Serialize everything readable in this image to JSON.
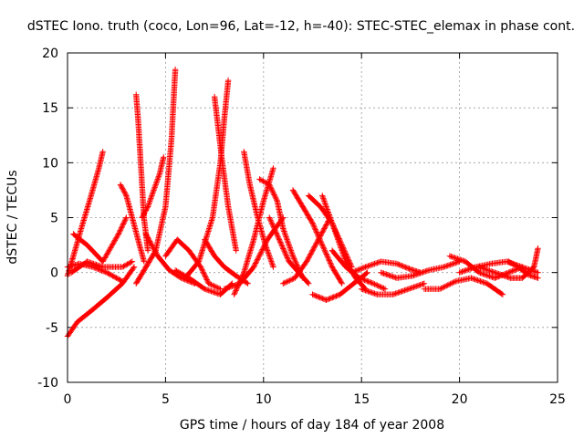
{
  "chart_data": {
    "type": "scatter",
    "title": "dSTEC Iono. truth (coco, Lon=96, Lat=-12, h=-40): STEC-STEC_elemax in phase cont.",
    "xlabel": "GPS time / hours of day 184 of year 2008",
    "ylabel": "dSTEC  / TECUs",
    "xlim": [
      0,
      25
    ],
    "ylim": [
      -10,
      20
    ],
    "xticks": [
      0,
      5,
      10,
      15,
      20,
      25
    ],
    "yticks": [
      -10,
      -5,
      0,
      5,
      10,
      15,
      20
    ],
    "grid": true,
    "marker": "plus",
    "series_color": "#ff0000",
    "series": [
      {
        "x": [
          0.0,
          0.3,
          0.7,
          1.2,
          1.6,
          1.8
        ],
        "y": [
          -0.3,
          1.5,
          4.0,
          7.0,
          9.5,
          11.0
        ]
      },
      {
        "x": [
          0.0,
          0.5,
          1.2,
          2.0,
          2.8,
          3.4
        ],
        "y": [
          -5.8,
          -4.5,
          -3.5,
          -2.3,
          -1.0,
          0.5
        ]
      },
      {
        "x": [
          0.3,
          1.0,
          1.8,
          2.6,
          3.0
        ],
        "y": [
          3.5,
          2.5,
          1.0,
          3.5,
          5.0
        ]
      },
      {
        "x": [
          0.2,
          1.0,
          1.8,
          2.8,
          3.3
        ],
        "y": [
          0.0,
          1.0,
          0.5,
          0.5,
          1.0
        ]
      },
      {
        "x": [
          0.0,
          0.6,
          1.3,
          2.0,
          2.8
        ],
        "y": [
          0.5,
          0.8,
          0.5,
          0.0,
          -0.8
        ]
      },
      {
        "x": [
          2.7,
          3.0,
          3.3,
          3.6,
          3.9
        ],
        "y": [
          8.0,
          7.0,
          5.0,
          3.0,
          1.0
        ]
      },
      {
        "x": [
          3.5,
          3.6,
          3.7,
          3.8,
          3.9,
          4.1
        ],
        "y": [
          16.2,
          14.0,
          11.0,
          8.0,
          5.0,
          2.0
        ]
      },
      {
        "x": [
          3.8,
          4.1,
          4.4,
          4.7,
          4.9
        ],
        "y": [
          5.0,
          6.0,
          7.5,
          9.0,
          10.5
        ]
      },
      {
        "x": [
          3.5,
          4.0,
          4.5,
          5.0,
          5.3,
          5.5
        ],
        "y": [
          -1.0,
          0.5,
          2.0,
          6.0,
          12.0,
          18.5
        ]
      },
      {
        "x": [
          4.0,
          4.6,
          5.2,
          5.8,
          6.5
        ],
        "y": [
          3.5,
          1.5,
          0.2,
          -0.5,
          -1.0
        ]
      },
      {
        "x": [
          5.0,
          5.6,
          6.2,
          6.8,
          7.2,
          7.8
        ],
        "y": [
          1.5,
          3.0,
          2.0,
          0.5,
          -1.0,
          -1.5
        ]
      },
      {
        "x": [
          5.5,
          6.2,
          7.0,
          7.8,
          8.4
        ],
        "y": [
          0.2,
          -0.5,
          -1.5,
          -2.0,
          -1.0
        ]
      },
      {
        "x": [
          6.0,
          6.7,
          7.4,
          7.8,
          8.0,
          8.2
        ],
        "y": [
          -0.5,
          1.0,
          5.0,
          10.0,
          14.0,
          17.5
        ]
      },
      {
        "x": [
          7.5,
          7.7,
          7.9,
          8.2,
          8.6
        ],
        "y": [
          16.0,
          13.0,
          10.0,
          6.0,
          2.0
        ]
      },
      {
        "x": [
          7.0,
          7.5,
          8.0,
          8.6,
          9.2
        ],
        "y": [
          3.0,
          1.5,
          0.5,
          -0.3,
          -1.0
        ]
      },
      {
        "x": [
          8.5,
          9.0,
          9.5,
          10.0,
          10.5
        ],
        "y": [
          -2.0,
          0.0,
          3.0,
          6.5,
          9.5
        ]
      },
      {
        "x": [
          9.0,
          9.3,
          9.7,
          10.1,
          10.5
        ],
        "y": [
          11.0,
          8.0,
          5.0,
          2.5,
          0.5
        ]
      },
      {
        "x": [
          8.0,
          8.8,
          9.5,
          10.2,
          11.0
        ],
        "y": [
          -1.5,
          -1.0,
          0.5,
          3.0,
          5.0
        ]
      },
      {
        "x": [
          9.8,
          10.3,
          10.7,
          11.0,
          11.5,
          12.0
        ],
        "y": [
          8.5,
          8.0,
          6.5,
          4.0,
          1.5,
          -0.5
        ]
      },
      {
        "x": [
          10.3,
          10.8,
          11.3,
          11.8,
          12.3
        ],
        "y": [
          5.0,
          3.0,
          1.0,
          0.0,
          -1.0
        ]
      },
      {
        "x": [
          11.0,
          11.6,
          12.2,
          12.8,
          13.4
        ],
        "y": [
          -1.0,
          -0.5,
          1.0,
          3.0,
          5.0
        ]
      },
      {
        "x": [
          11.5,
          12.0,
          12.5,
          13.0,
          13.5,
          14.0
        ],
        "y": [
          7.5,
          6.0,
          4.5,
          2.5,
          0.5,
          -1.0
        ]
      },
      {
        "x": [
          12.3,
          12.9,
          13.5,
          14.0,
          14.5
        ],
        "y": [
          7.0,
          6.0,
          4.5,
          2.5,
          0.5
        ]
      },
      {
        "x": [
          13.0,
          13.4,
          13.8,
          14.2,
          14.7,
          15.2
        ],
        "y": [
          7.0,
          5.0,
          3.0,
          1.0,
          -0.5,
          -1.5
        ]
      },
      {
        "x": [
          12.5,
          13.2,
          13.9,
          14.6,
          15.3
        ],
        "y": [
          -2.0,
          -2.5,
          -2.0,
          -1.0,
          0.0
        ]
      },
      {
        "x": [
          13.5,
          14.2,
          14.9,
          15.6,
          16.2
        ],
        "y": [
          2.0,
          0.5,
          -0.5,
          -1.0,
          -1.5
        ]
      },
      {
        "x": [
          14.5,
          15.2,
          16.0,
          16.8,
          17.5,
          18.0
        ],
        "y": [
          0.0,
          0.5,
          1.0,
          0.8,
          0.3,
          0.0
        ]
      },
      {
        "x": [
          15.0,
          15.8,
          16.6,
          17.4,
          18.2
        ],
        "y": [
          -1.5,
          -2.0,
          -2.0,
          -1.5,
          -1.0
        ]
      },
      {
        "x": [
          16.0,
          16.8,
          17.6,
          18.4,
          19.2,
          20.0
        ],
        "y": [
          0.0,
          -0.5,
          -0.3,
          0.2,
          0.5,
          1.0
        ]
      },
      {
        "x": [
          18.2,
          19.0,
          19.8,
          20.6,
          21.4,
          22.2
        ],
        "y": [
          -1.5,
          -1.5,
          -0.8,
          -0.5,
          -1.0,
          -2.0
        ]
      },
      {
        "x": [
          19.5,
          20.3,
          21.0,
          21.8,
          22.5,
          23.2
        ],
        "y": [
          1.5,
          1.0,
          0.0,
          -0.5,
          0.0,
          0.5
        ]
      },
      {
        "x": [
          20.0,
          20.8,
          21.6,
          22.4,
          23.2,
          24.0
        ],
        "y": [
          0.0,
          0.5,
          0.8,
          1.0,
          0.5,
          0.0
        ]
      },
      {
        "x": [
          21.0,
          21.8,
          22.6,
          23.2,
          23.8,
          24.0
        ],
        "y": [
          0.5,
          0.0,
          -0.5,
          -0.5,
          0.5,
          2.2
        ]
      },
      {
        "x": [
          22.5,
          23.0,
          23.5,
          24.0
        ],
        "y": [
          1.0,
          0.5,
          -0.2,
          -0.5
        ]
      }
    ]
  }
}
